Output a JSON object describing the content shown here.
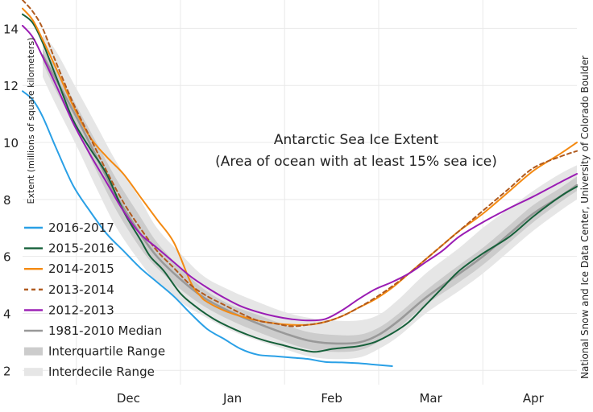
{
  "chart_data": {
    "type": "line",
    "title": "Antarctic Sea Ice Extent",
    "subtitle": "(Area of ocean with at least 15% sea ice)",
    "ylabel": "Extent (millions of square kilometers)",
    "xlabel": "",
    "credit": "National Snow and Ice Data Center, University of Colorado Boulder",
    "ylim": [
      1.5,
      15.0
    ],
    "xlim": [
      0,
      165
    ],
    "x_unit": "days since 15 Nov",
    "y_ticks": [
      2,
      4,
      6,
      8,
      10,
      12,
      14
    ],
    "month_boundaries": [
      16,
      47,
      78,
      106,
      137
    ],
    "month_labels": [
      {
        "label": "Dec",
        "x": 31.5
      },
      {
        "label": "Jan",
        "x": 62.5
      },
      {
        "label": "Feb",
        "x": 92
      },
      {
        "label": "Mar",
        "x": 121.5
      },
      {
        "label": "Apr",
        "x": 152
      }
    ],
    "grid": true,
    "legend_position": "bottom-left",
    "bands": [
      {
        "name": "Interdecile Range",
        "color": "#e6e6e6",
        "x": [
          6,
          10,
          16,
          22,
          28,
          35,
          40,
          47,
          54,
          62,
          70,
          78,
          85,
          92,
          100,
          106,
          112,
          120,
          130,
          137,
          145,
          152,
          160,
          165
        ],
        "lower": [
          12.3,
          11.3,
          9.9,
          8.4,
          7.0,
          5.8,
          5.1,
          4.4,
          3.9,
          3.4,
          3.05,
          2.75,
          2.5,
          2.4,
          2.45,
          2.75,
          3.2,
          4.0,
          4.8,
          5.4,
          6.2,
          6.9,
          7.6,
          8.0
        ],
        "upper": [
          13.8,
          13.2,
          11.9,
          10.6,
          9.3,
          8.0,
          7.0,
          6.1,
          5.3,
          4.8,
          4.4,
          4.05,
          3.85,
          3.75,
          3.75,
          3.95,
          4.5,
          5.4,
          6.3,
          7.0,
          7.7,
          8.3,
          8.9,
          9.2
        ]
      },
      {
        "name": "Interquartile Range",
        "color": "#cccccc",
        "x": [
          6,
          10,
          16,
          22,
          28,
          35,
          40,
          47,
          54,
          62,
          70,
          78,
          85,
          92,
          100,
          106,
          112,
          120,
          130,
          137,
          145,
          152,
          160,
          165
        ],
        "lower": [
          12.8,
          11.8,
          10.5,
          9.0,
          7.6,
          6.3,
          5.6,
          4.85,
          4.25,
          3.75,
          3.35,
          3.0,
          2.75,
          2.65,
          2.7,
          3.0,
          3.5,
          4.3,
          5.1,
          5.7,
          6.5,
          7.2,
          7.9,
          8.3
        ],
        "upper": [
          13.3,
          12.6,
          11.3,
          10.0,
          8.7,
          7.4,
          6.5,
          5.6,
          4.85,
          4.3,
          3.95,
          3.6,
          3.35,
          3.25,
          3.25,
          3.5,
          4.0,
          4.8,
          5.7,
          6.3,
          7.1,
          7.8,
          8.4,
          8.8
        ]
      }
    ],
    "series": [
      {
        "name": "1981-2010 Median",
        "color": "#999999",
        "dash": "",
        "width": 2.6,
        "x": [
          6,
          10,
          16,
          22,
          28,
          35,
          40,
          47,
          54,
          62,
          70,
          78,
          85,
          92,
          100,
          106,
          112,
          120,
          130,
          137,
          145,
          152,
          160,
          165
        ],
        "y": [
          13.05,
          12.2,
          10.9,
          9.5,
          8.1,
          6.8,
          6.0,
          5.2,
          4.55,
          4.05,
          3.65,
          3.3,
          3.05,
          2.95,
          2.98,
          3.25,
          3.75,
          4.55,
          5.4,
          6.0,
          6.8,
          7.5,
          8.1,
          8.5
        ]
      },
      {
        "name": "2016-2017",
        "color": "#2aa0e6",
        "dash": "",
        "width": 2.0,
        "x": [
          0,
          3,
          6,
          10,
          15,
          20,
          25,
          30,
          35,
          40,
          45,
          50,
          55,
          60,
          65,
          70,
          75,
          80,
          85,
          90,
          95,
          100,
          105,
          110
        ],
        "y": [
          11.8,
          11.5,
          10.9,
          9.8,
          8.5,
          7.6,
          6.8,
          6.2,
          5.6,
          5.1,
          4.6,
          4.0,
          3.45,
          3.1,
          2.75,
          2.55,
          2.5,
          2.45,
          2.4,
          2.3,
          2.28,
          2.25,
          2.2,
          2.15
        ]
      },
      {
        "name": "2015-2016",
        "color": "#16603a",
        "dash": "",
        "width": 2.0,
        "x": [
          0,
          3,
          6,
          10,
          15,
          20,
          25,
          30,
          35,
          38,
          42,
          47,
          52,
          57,
          62,
          67,
          72,
          77,
          82,
          87,
          92,
          96,
          100,
          105,
          110,
          115,
          120,
          125,
          130,
          137,
          145,
          152,
          160,
          165
        ],
        "y": [
          14.5,
          14.2,
          13.5,
          12.3,
          10.8,
          9.8,
          8.9,
          7.6,
          6.6,
          6.0,
          5.5,
          4.7,
          4.2,
          3.8,
          3.5,
          3.25,
          3.05,
          2.9,
          2.75,
          2.65,
          2.75,
          2.8,
          2.85,
          3.0,
          3.3,
          3.7,
          4.3,
          4.9,
          5.5,
          6.1,
          6.7,
          7.4,
          8.1,
          8.45
        ]
      },
      {
        "name": "2014-2015",
        "color": "#f48a12",
        "dash": "",
        "width": 2.0,
        "x": [
          0,
          3,
          6,
          10,
          15,
          20,
          25,
          30,
          35,
          40,
          45,
          50,
          53,
          55,
          60,
          65,
          70,
          75,
          80,
          85,
          90,
          95,
          100,
          105,
          110,
          115,
          120,
          125,
          130,
          137,
          145,
          152,
          160,
          165
        ],
        "y": [
          14.7,
          14.3,
          13.6,
          12.6,
          11.3,
          10.2,
          9.5,
          8.9,
          8.1,
          7.3,
          6.5,
          5.1,
          4.6,
          4.4,
          4.1,
          3.9,
          3.75,
          3.65,
          3.6,
          3.6,
          3.7,
          3.9,
          4.2,
          4.5,
          4.9,
          5.4,
          5.9,
          6.4,
          6.9,
          7.5,
          8.3,
          9.0,
          9.6,
          10.0
        ]
      },
      {
        "name": "2013-2014",
        "color": "#b05a1e",
        "dash": "5,4",
        "width": 2.0,
        "x": [
          0,
          3,
          6,
          10,
          15,
          20,
          25,
          30,
          35,
          40,
          45,
          50,
          55,
          60,
          65,
          70,
          75,
          80,
          85,
          90,
          95,
          100,
          105,
          110,
          115,
          120,
          125,
          130,
          137,
          145,
          152,
          160,
          165
        ],
        "y": [
          15.0,
          14.6,
          14.0,
          12.8,
          11.4,
          10.2,
          9.0,
          7.9,
          7.0,
          6.2,
          5.6,
          5.0,
          4.6,
          4.3,
          4.0,
          3.75,
          3.65,
          3.55,
          3.6,
          3.7,
          3.9,
          4.2,
          4.55,
          4.95,
          5.4,
          5.9,
          6.4,
          6.9,
          7.6,
          8.4,
          9.1,
          9.5,
          9.7
        ]
      },
      {
        "name": "2012-2013",
        "color": "#9a1cb4",
        "dash": "",
        "width": 2.0,
        "x": [
          0,
          3,
          6,
          10,
          15,
          20,
          25,
          30,
          35,
          40,
          45,
          50,
          55,
          60,
          65,
          70,
          75,
          80,
          85,
          90,
          95,
          100,
          105,
          110,
          115,
          120,
          125,
          130,
          137,
          145,
          152,
          160,
          165
        ],
        "y": [
          14.1,
          13.7,
          13.0,
          12.0,
          10.7,
          9.6,
          8.6,
          7.6,
          6.8,
          6.3,
          5.8,
          5.3,
          4.9,
          4.55,
          4.25,
          4.05,
          3.9,
          3.8,
          3.75,
          3.8,
          4.1,
          4.5,
          4.85,
          5.1,
          5.4,
          5.8,
          6.2,
          6.7,
          7.2,
          7.7,
          8.1,
          8.6,
          8.9
        ]
      }
    ],
    "legend": [
      {
        "label": "2016-2017",
        "kind": "line",
        "color": "#2aa0e6",
        "dash": ""
      },
      {
        "label": "2015-2016",
        "kind": "line",
        "color": "#16603a",
        "dash": ""
      },
      {
        "label": "2014-2015",
        "kind": "line",
        "color": "#f48a12",
        "dash": ""
      },
      {
        "label": "2013-2014",
        "kind": "line",
        "color": "#b05a1e",
        "dash": "5,4"
      },
      {
        "label": "2012-2013",
        "kind": "line",
        "color": "#9a1cb4",
        "dash": ""
      },
      {
        "label": "1981-2010 Median",
        "kind": "line",
        "color": "#999999",
        "dash": ""
      },
      {
        "label": "Interquartile Range",
        "kind": "band",
        "color": "#cccccc",
        "dash": ""
      },
      {
        "label": "Interdecile Range",
        "kind": "band",
        "color": "#e6e6e6",
        "dash": ""
      }
    ]
  }
}
